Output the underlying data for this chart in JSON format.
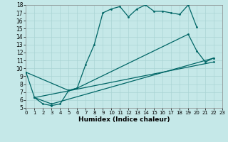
{
  "xlabel": "Humidex (Indice chaleur)",
  "bg_color": "#c5e8e8",
  "line_color": "#006666",
  "grid_color": "#aad4d4",
  "xmin": 0,
  "xmax": 23,
  "ymin": 5,
  "ymax": 18,
  "series1": {
    "x": [
      0,
      1,
      2,
      3,
      4,
      5,
      6,
      7,
      8,
      9,
      10,
      11,
      12,
      13,
      14,
      15,
      16,
      17,
      18,
      19,
      20
    ],
    "y": [
      9.5,
      6.3,
      5.5,
      5.3,
      5.5,
      7.2,
      7.5,
      10.5,
      13.0,
      17.0,
      17.5,
      17.8,
      16.5,
      17.5,
      18.0,
      17.2,
      17.2,
      17.0,
      16.8,
      18.0,
      15.2
    ]
  },
  "series2": {
    "x": [
      0,
      5,
      6,
      19,
      20,
      21,
      22
    ],
    "y": [
      9.5,
      7.2,
      7.5,
      14.3,
      12.2,
      10.8,
      11.3
    ]
  },
  "series3": {
    "x": [
      1,
      3,
      22
    ],
    "y": [
      6.3,
      5.5,
      11.3
    ]
  },
  "series4": {
    "x": [
      1,
      22
    ],
    "y": [
      6.3,
      10.8
    ]
  }
}
